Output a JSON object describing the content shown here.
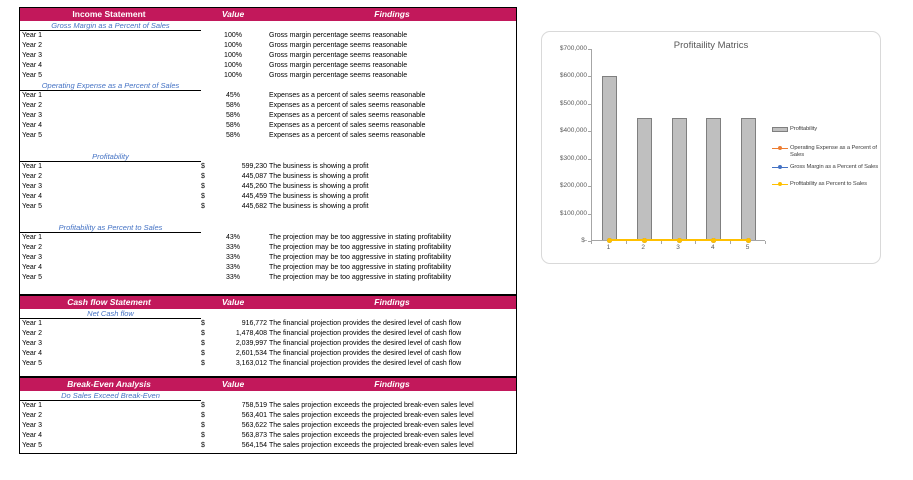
{
  "colors": {
    "header_bg": "#C2185B",
    "section_text": "#4472C4",
    "bar_fill": "#BFBFBF",
    "bar_border": "#7F7F7F",
    "axis_gray": "#A6A6A6"
  },
  "tables": [
    {
      "title": "Income Statement",
      "columns": {
        "value": "Value",
        "findings": "Findings"
      },
      "sections": [
        {
          "name": "Gross Margin as a Percent of Sales",
          "rows": [
            {
              "label": "Year 1",
              "value": "100%",
              "finding": "Gross margin percentage seems reasonable"
            },
            {
              "label": "Year 2",
              "value": "100%",
              "finding": "Gross margin percentage seems reasonable"
            },
            {
              "label": "Year 3",
              "value": "100%",
              "finding": "Gross margin percentage seems reasonable"
            },
            {
              "label": "Year 4",
              "value": "100%",
              "finding": "Gross margin percentage seems reasonable"
            },
            {
              "label": "Year 5",
              "value": "100%",
              "finding": "Gross margin percentage seems reasonable"
            }
          ]
        },
        {
          "name": "Operating Expense as a Percent of Sales",
          "rows": [
            {
              "label": "Year 1",
              "value": "45%",
              "finding": "Expenses as a percent of sales seems reasonable"
            },
            {
              "label": "Year 2",
              "value": "58%",
              "finding": "Expenses as a percent of sales seems reasonable"
            },
            {
              "label": "Year 3",
              "value": "58%",
              "finding": "Expenses as a percent of sales seems reasonable"
            },
            {
              "label": "Year 4",
              "value": "58%",
              "finding": "Expenses as a percent of sales seems reasonable"
            },
            {
              "label": "Year 5",
              "value": "58%",
              "finding": "Expenses as a percent of sales seems reasonable"
            }
          ]
        },
        {
          "name": "Profitability",
          "rows": [
            {
              "label": "Year 1",
              "currency": "$",
              "value": "599,230",
              "finding": "The business is showing a profit"
            },
            {
              "label": "Year 2",
              "currency": "$",
              "value": "445,087",
              "finding": "The business is showing a profit"
            },
            {
              "label": "Year 3",
              "currency": "$",
              "value": "445,260",
              "finding": "The business is showing a profit"
            },
            {
              "label": "Year 4",
              "currency": "$",
              "value": "445,459",
              "finding": "The business is showing a profit"
            },
            {
              "label": "Year 5",
              "currency": "$",
              "value": "445,682",
              "finding": "The business is showing a profit"
            }
          ]
        },
        {
          "name": "Profitability as Percent to Sales",
          "rows": [
            {
              "label": "Year 1",
              "value": "43%",
              "finding": "The projection may be too aggressive in stating profitability"
            },
            {
              "label": "Year 2",
              "value": "33%",
              "finding": "The projection may be too aggressive in stating profitability"
            },
            {
              "label": "Year 3",
              "value": "33%",
              "finding": "The projection may be too aggressive in stating profitability"
            },
            {
              "label": "Year 4",
              "value": "33%",
              "finding": "The projection may be too aggressive in stating profitability"
            },
            {
              "label": "Year 5",
              "value": "33%",
              "finding": "The projection may be too aggressive in stating profitability"
            }
          ]
        }
      ]
    },
    {
      "title": "Cash flow Statement",
      "columns": {
        "value": "Value",
        "findings": "Findings"
      },
      "sections": [
        {
          "name": "Net Cash flow",
          "rows": [
            {
              "label": "Year 1",
              "currency": "$",
              "value": "916,772",
              "finding": "The financial projection provides the desired level of cash flow"
            },
            {
              "label": "Year 2",
              "currency": "$",
              "value": "1,478,408",
              "finding": "The financial projection provides the desired level of cash flow"
            },
            {
              "label": "Year 3",
              "currency": "$",
              "value": "2,039,997",
              "finding": "The financial projection provides the desired level of cash flow"
            },
            {
              "label": "Year 4",
              "currency": "$",
              "value": "2,601,534",
              "finding": "The financial projection provides the desired level of cash flow"
            },
            {
              "label": "Year 5",
              "currency": "$",
              "value": "3,163,012",
              "finding": "The financial projection provides the desired level of cash flow"
            }
          ]
        }
      ]
    },
    {
      "title": "Break-Even Analysis",
      "columns": {
        "value": "Value",
        "findings": "Findings"
      },
      "sections": [
        {
          "name": "Do Sales Exceed Break-Even",
          "rows": [
            {
              "label": "Year 1",
              "currency": "$",
              "value": "758,519",
              "finding": "The sales projection exceeds the projected break-even sales level"
            },
            {
              "label": "Year 2",
              "currency": "$",
              "value": "563,401",
              "finding": "The sales projection exceeds the projected break-even sales level"
            },
            {
              "label": "Year 3",
              "currency": "$",
              "value": "563,622",
              "finding": "The sales projection exceeds the projected break-even sales level"
            },
            {
              "label": "Year 4",
              "currency": "$",
              "value": "563,873",
              "finding": "The sales projection exceeds the projected break-even sales level"
            },
            {
              "label": "Year 5",
              "currency": "$",
              "value": "564,154",
              "finding": "The sales projection exceeds the projected break-even sales level"
            }
          ]
        }
      ]
    }
  ],
  "chart_data": {
    "type": "bar",
    "title": "Profitaility Matrics",
    "categories": [
      "1",
      "2",
      "3",
      "4",
      "5"
    ],
    "series": [
      {
        "name": "Profitability",
        "type": "bar",
        "color": "#BFBFBF",
        "values": [
          599230,
          445087,
          445260,
          445459,
          445682
        ]
      },
      {
        "name": "Operating Expense as a Percent of Sales",
        "type": "line",
        "color": "#ED7D31",
        "values": [
          0.45,
          0.58,
          0.58,
          0.58,
          0.58
        ]
      },
      {
        "name": "Gross Margin as a Percent of Sales",
        "type": "line",
        "color": "#4472C4",
        "values": [
          1.0,
          1.0,
          1.0,
          1.0,
          1.0
        ]
      },
      {
        "name": "Profitability as Percent to Sales",
        "type": "line",
        "color": "#FFC000",
        "values": [
          0.43,
          0.33,
          0.33,
          0.33,
          0.33
        ]
      }
    ],
    "xlabel": "",
    "ylabel": "",
    "ylim": [
      0,
      700000
    ],
    "y_tick_labels": [
      "$700,000",
      "$600,000",
      "$500,000",
      "$400,000",
      "$300,000",
      "$200,000",
      "$100,000",
      "$-"
    ],
    "legend_position": "right",
    "grid": false
  }
}
